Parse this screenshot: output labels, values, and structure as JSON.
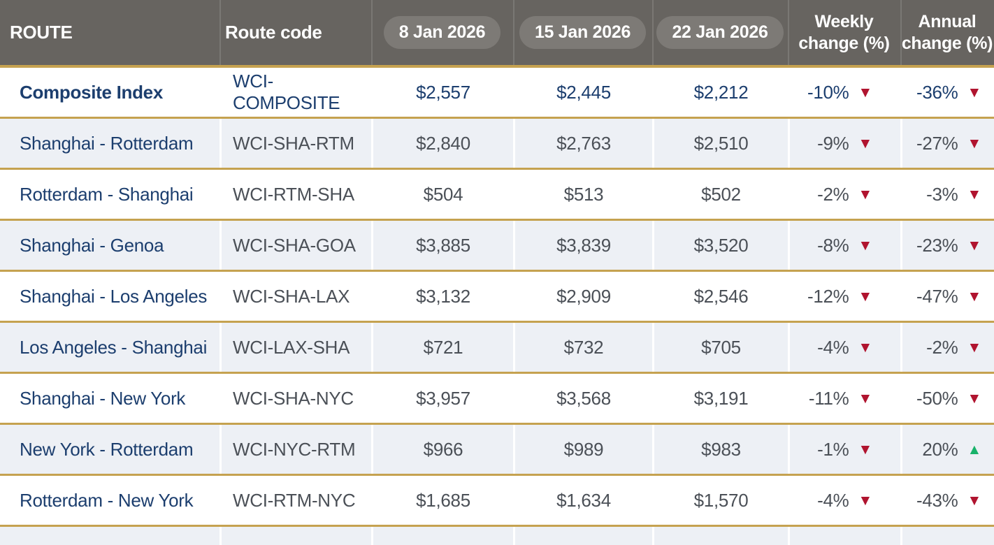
{
  "colors": {
    "header-bg": "#676460",
    "pill-bg": "#7d7a76",
    "gold": "#c5a250",
    "row-alt": "#edf0f5",
    "row-plain": "#ffffff",
    "navy": "#1c3e6e",
    "gray-text": "#4b5057",
    "red": "#b0142f",
    "green": "#18b26a",
    "header-text": "#ffffff"
  },
  "icons": {
    "down": "▼",
    "up": "▲"
  },
  "table": {
    "header": {
      "route": "ROUTE",
      "route_code": "Route code",
      "date1": "8 Jan 2026",
      "date2": "15 Jan 2026",
      "date3": "22 Jan 2026",
      "weekly_line1": "Weekly",
      "weekly_line2": "change (%)",
      "annual_line1": "Annual",
      "annual_line2": "change (%)"
    },
    "rows": [
      {
        "route": "Composite Index",
        "code": "WCI-COMPOSITE",
        "d1": "$2,557",
        "d2": "$2,445",
        "d3": "$2,212",
        "weekly": "-10%",
        "weekly_dir": "down",
        "annual": "-36%",
        "annual_dir": "down",
        "emphasis": true
      },
      {
        "route": "Shanghai - Rotterdam",
        "code": "WCI-SHA-RTM",
        "d1": "$2,840",
        "d2": "$2,763",
        "d3": "$2,510",
        "weekly": "-9%",
        "weekly_dir": "down",
        "annual": "-27%",
        "annual_dir": "down",
        "emphasis": false
      },
      {
        "route": "Rotterdam - Shanghai",
        "code": "WCI-RTM-SHA",
        "d1": "$504",
        "d2": "$513",
        "d3": "$502",
        "weekly": "-2%",
        "weekly_dir": "down",
        "annual": "-3%",
        "annual_dir": "down",
        "emphasis": false
      },
      {
        "route": "Shanghai - Genoa",
        "code": "WCI-SHA-GOA",
        "d1": "$3,885",
        "d2": "$3,839",
        "d3": "$3,520",
        "weekly": "-8%",
        "weekly_dir": "down",
        "annual": "-23%",
        "annual_dir": "down",
        "emphasis": false
      },
      {
        "route": "Shanghai - Los Angeles",
        "code": "WCI-SHA-LAX",
        "d1": "$3,132",
        "d2": "$2,909",
        "d3": "$2,546",
        "weekly": "-12%",
        "weekly_dir": "down",
        "annual": "-47%",
        "annual_dir": "down",
        "emphasis": false
      },
      {
        "route": "Los Angeles - Shanghai",
        "code": "WCI-LAX-SHA",
        "d1": "$721",
        "d2": "$732",
        "d3": "$705",
        "weekly": "-4%",
        "weekly_dir": "down",
        "annual": "-2%",
        "annual_dir": "down",
        "emphasis": false
      },
      {
        "route": "Shanghai - New York",
        "code": "WCI-SHA-NYC",
        "d1": "$3,957",
        "d2": "$3,568",
        "d3": "$3,191",
        "weekly": "-11%",
        "weekly_dir": "down",
        "annual": "-50%",
        "annual_dir": "down",
        "emphasis": false
      },
      {
        "route": "New York - Rotterdam",
        "code": "WCI-NYC-RTM",
        "d1": "$966",
        "d2": "$989",
        "d3": "$983",
        "weekly": "-1%",
        "weekly_dir": "down",
        "annual": "20%",
        "annual_dir": "up",
        "emphasis": false
      },
      {
        "route": "Rotterdam - New York",
        "code": "WCI-RTM-NYC",
        "d1": "$1,685",
        "d2": "$1,634",
        "d3": "$1,570",
        "weekly": "-4%",
        "weekly_dir": "down",
        "annual": "-43%",
        "annual_dir": "down",
        "emphasis": false
      }
    ],
    "partial_bottom_row": true
  }
}
